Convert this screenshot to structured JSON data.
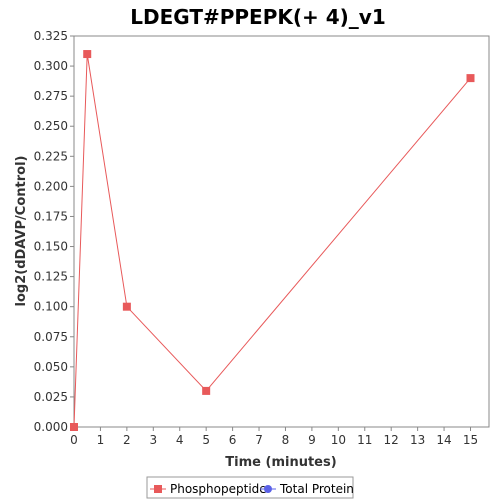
{
  "chart_data": {
    "type": "line",
    "title": "LDEGT#PPEPK(+ 4)_v1",
    "xlabel": "Time (minutes)",
    "ylabel": "log2(dDAVP/Control)",
    "xlim": [
      0,
      15.7
    ],
    "ylim": [
      0,
      0.325
    ],
    "x_ticks": [
      0,
      1,
      2,
      3,
      4,
      5,
      6,
      7,
      8,
      9,
      10,
      11,
      12,
      13,
      14,
      15
    ],
    "x_tick_labels": [
      "0",
      "1",
      "2",
      "3",
      "4",
      "5",
      "6",
      "7",
      "8",
      "9",
      "10",
      "11",
      "12",
      "13",
      "14",
      "15"
    ],
    "y_ticks": [
      0,
      0.025,
      0.05,
      0.075,
      0.1,
      0.125,
      0.15,
      0.175,
      0.2,
      0.225,
      0.25,
      0.275,
      0.3,
      0.325
    ],
    "y_tick_labels": [
      "0.000",
      "0.025",
      "0.050",
      "0.075",
      "0.100",
      "0.125",
      "0.150",
      "0.175",
      "0.200",
      "0.225",
      "0.250",
      "0.275",
      "0.300",
      "0.325"
    ],
    "grid": false,
    "legend_position": "bottom",
    "series": [
      {
        "name": "Phosphopeptide",
        "color": "#e8595a",
        "marker": "square",
        "x": [
          0,
          0.5,
          2,
          5,
          15
        ],
        "y": [
          0,
          0.31,
          0.1,
          0.03,
          0.29
        ]
      },
      {
        "name": "Total Protein",
        "color": "#5b62e8",
        "marker": "circle",
        "x": [],
        "y": []
      }
    ]
  }
}
